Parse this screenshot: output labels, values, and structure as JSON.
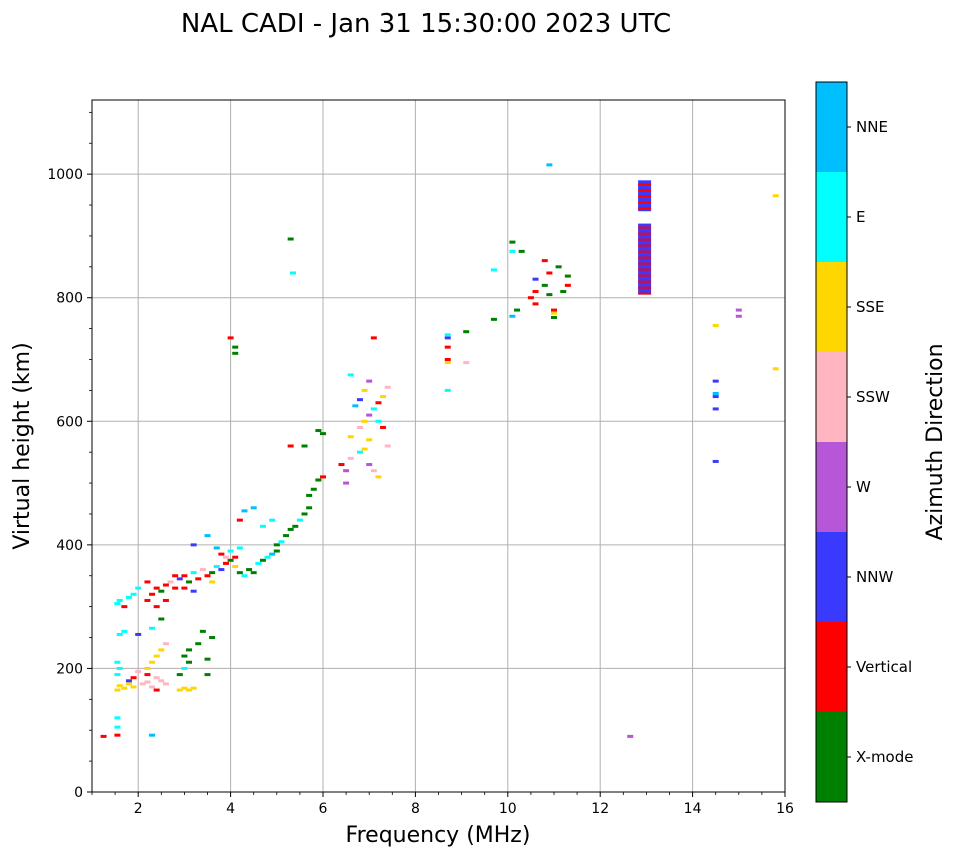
{
  "chart_data": {
    "type": "scatter",
    "title": "NAL CADI - Jan 31 15:30:00 2023 UTC",
    "xlabel": "Frequency (MHz)",
    "ylabel": "Virtual height (km)",
    "xlim": [
      1,
      16
    ],
    "ylim": [
      0,
      1120
    ],
    "xticks": [
      2,
      4,
      6,
      8,
      10,
      12,
      14,
      16
    ],
    "yticks": [
      0,
      200,
      400,
      600,
      800,
      1000
    ],
    "grid": true,
    "colorbar": {
      "label": "Azimuth Direction",
      "categories": [
        "X-mode",
        "Vertical",
        "NNW",
        "W",
        "SSW",
        "SSE",
        "E",
        "NNE"
      ],
      "colors": [
        "#008000",
        "#ff0000",
        "#3a3aff",
        "#b557d6",
        "#ffb6c1",
        "#ffd700",
        "#00ffff",
        "#00bfff"
      ]
    },
    "points": [
      [
        1.25,
        90,
        "Vertical"
      ],
      [
        1.55,
        92,
        "Vertical"
      ],
      [
        1.55,
        105,
        "E"
      ],
      [
        1.55,
        120,
        "E"
      ],
      [
        2.3,
        92,
        "NNE"
      ],
      [
        1.55,
        165,
        "SSE"
      ],
      [
        1.6,
        172,
        "SSE"
      ],
      [
        1.7,
        168,
        "SSE"
      ],
      [
        1.8,
        175,
        "SSE"
      ],
      [
        1.9,
        170,
        "SSE"
      ],
      [
        1.55,
        190,
        "E"
      ],
      [
        1.6,
        200,
        "E"
      ],
      [
        1.55,
        210,
        "E"
      ],
      [
        1.8,
        180,
        "NNW"
      ],
      [
        1.9,
        185,
        "Vertical"
      ],
      [
        2.0,
        195,
        "SSW"
      ],
      [
        2.1,
        175,
        "SSW"
      ],
      [
        2.2,
        178,
        "SSW"
      ],
      [
        2.3,
        170,
        "SSW"
      ],
      [
        2.4,
        185,
        "SSW"
      ],
      [
        2.5,
        180,
        "SSW"
      ],
      [
        2.6,
        175,
        "SSW"
      ],
      [
        2.4,
        165,
        "Vertical"
      ],
      [
        2.2,
        190,
        "Vertical"
      ],
      [
        2.2,
        200,
        "SSE"
      ],
      [
        2.3,
        210,
        "SSE"
      ],
      [
        2.4,
        220,
        "SSE"
      ],
      [
        2.5,
        230,
        "SSE"
      ],
      [
        2.6,
        240,
        "SSW"
      ],
      [
        2.9,
        165,
        "SSE"
      ],
      [
        3.0,
        168,
        "SSE"
      ],
      [
        3.1,
        165,
        "SSE"
      ],
      [
        3.2,
        168,
        "SSE"
      ],
      [
        2.9,
        190,
        "X-mode"
      ],
      [
        3.0,
        200,
        "E"
      ],
      [
        3.1,
        210,
        "X-mode"
      ],
      [
        3.0,
        220,
        "X-mode"
      ],
      [
        3.1,
        230,
        "X-mode"
      ],
      [
        3.3,
        240,
        "X-mode"
      ],
      [
        3.5,
        190,
        "X-mode"
      ],
      [
        3.5,
        215,
        "X-mode"
      ],
      [
        3.4,
        260,
        "X-mode"
      ],
      [
        3.6,
        250,
        "X-mode"
      ],
      [
        1.6,
        255,
        "E"
      ],
      [
        1.7,
        260,
        "E"
      ],
      [
        2.0,
        255,
        "NNW"
      ],
      [
        2.3,
        265,
        "E"
      ],
      [
        2.5,
        280,
        "X-mode"
      ],
      [
        1.55,
        305,
        "E"
      ],
      [
        1.6,
        310,
        "E"
      ],
      [
        1.7,
        300,
        "Vertical"
      ],
      [
        1.8,
        315,
        "E"
      ],
      [
        1.9,
        320,
        "E"
      ],
      [
        2.0,
        330,
        "E"
      ],
      [
        2.2,
        310,
        "Vertical"
      ],
      [
        2.3,
        320,
        "Vertical"
      ],
      [
        2.4,
        330,
        "Vertical"
      ],
      [
        2.5,
        325,
        "X-mode"
      ],
      [
        2.6,
        335,
        "Vertical"
      ],
      [
        2.7,
        340,
        "SSW"
      ],
      [
        2.8,
        330,
        "Vertical"
      ],
      [
        2.9,
        345,
        "NNW"
      ],
      [
        3.0,
        350,
        "Vertical"
      ],
      [
        3.1,
        340,
        "X-mode"
      ],
      [
        3.2,
        355,
        "E"
      ],
      [
        3.3,
        345,
        "Vertical"
      ],
      [
        3.4,
        360,
        "SSW"
      ],
      [
        3.5,
        350,
        "Vertical"
      ],
      [
        3.6,
        355,
        "X-mode"
      ],
      [
        3.7,
        365,
        "E"
      ],
      [
        3.8,
        360,
        "NNW"
      ],
      [
        3.9,
        370,
        "Vertical"
      ],
      [
        4.0,
        375,
        "X-mode"
      ],
      [
        4.1,
        365,
        "SSE"
      ],
      [
        4.2,
        355,
        "X-mode"
      ],
      [
        4.3,
        350,
        "E"
      ],
      [
        4.4,
        360,
        "X-mode"
      ],
      [
        4.5,
        355,
        "X-mode"
      ],
      [
        4.6,
        370,
        "E"
      ],
      [
        4.7,
        375,
        "X-mode"
      ],
      [
        4.8,
        380,
        "E"
      ],
      [
        4.9,
        385,
        "NNE"
      ],
      [
        5.0,
        390,
        "X-mode"
      ],
      [
        2.4,
        300,
        "Vertical"
      ],
      [
        2.6,
        310,
        "Vertical"
      ],
      [
        2.2,
        340,
        "Vertical"
      ],
      [
        2.8,
        350,
        "Vertical"
      ],
      [
        3.0,
        330,
        "Vertical"
      ],
      [
        3.2,
        325,
        "NNW"
      ],
      [
        3.6,
        340,
        "SSE"
      ],
      [
        3.8,
        385,
        "Vertical"
      ],
      [
        4.0,
        390,
        "E"
      ],
      [
        4.2,
        395,
        "E"
      ],
      [
        3.7,
        395,
        "NNE"
      ],
      [
        3.2,
        400,
        "NNW"
      ],
      [
        3.5,
        415,
        "NNE"
      ],
      [
        3.9,
        380,
        "SSW"
      ],
      [
        4.1,
        380,
        "Vertical"
      ],
      [
        4.0,
        735,
        "Vertical"
      ],
      [
        4.1,
        720,
        "X-mode"
      ],
      [
        4.1,
        710,
        "X-mode"
      ],
      [
        5.3,
        895,
        "X-mode"
      ],
      [
        5.35,
        840,
        "E"
      ],
      [
        4.5,
        460,
        "NNE"
      ],
      [
        4.3,
        455,
        "NNE"
      ],
      [
        4.2,
        440,
        "Vertical"
      ],
      [
        4.7,
        430,
        "E"
      ],
      [
        4.9,
        440,
        "E"
      ],
      [
        5.0,
        400,
        "X-mode"
      ],
      [
        5.1,
        405,
        "E"
      ],
      [
        5.2,
        415,
        "X-mode"
      ],
      [
        5.3,
        425,
        "X-mode"
      ],
      [
        5.4,
        430,
        "X-mode"
      ],
      [
        5.5,
        440,
        "E"
      ],
      [
        5.6,
        450,
        "X-mode"
      ],
      [
        5.7,
        460,
        "X-mode"
      ],
      [
        5.7,
        480,
        "X-mode"
      ],
      [
        5.8,
        490,
        "X-mode"
      ],
      [
        5.9,
        505,
        "X-mode"
      ],
      [
        6.0,
        510,
        "Vertical"
      ],
      [
        5.3,
        560,
        "Vertical"
      ],
      [
        5.6,
        560,
        "X-mode"
      ],
      [
        5.9,
        585,
        "X-mode"
      ],
      [
        6.0,
        580,
        "X-mode"
      ],
      [
        6.5,
        500,
        "W"
      ],
      [
        6.5,
        520,
        "W"
      ],
      [
        6.4,
        530,
        "Vertical"
      ],
      [
        6.6,
        540,
        "SSW"
      ],
      [
        6.8,
        550,
        "E"
      ],
      [
        6.9,
        555,
        "SSE"
      ],
      [
        7.0,
        530,
        "W"
      ],
      [
        7.1,
        520,
        "SSW"
      ],
      [
        7.2,
        510,
        "SSE"
      ],
      [
        6.6,
        575,
        "SSE"
      ],
      [
        6.8,
        590,
        "SSW"
      ],
      [
        6.9,
        600,
        "SSE"
      ],
      [
        7.0,
        610,
        "W"
      ],
      [
        7.1,
        620,
        "E"
      ],
      [
        7.2,
        630,
        "Vertical"
      ],
      [
        7.3,
        640,
        "SSE"
      ],
      [
        7.4,
        655,
        "SSW"
      ],
      [
        6.7,
        625,
        "NNE"
      ],
      [
        6.8,
        635,
        "NNW"
      ],
      [
        6.9,
        650,
        "SSE"
      ],
      [
        7.0,
        665,
        "W"
      ],
      [
        6.6,
        675,
        "E"
      ],
      [
        7.1,
        735,
        "Vertical"
      ],
      [
        7.3,
        590,
        "Vertical"
      ],
      [
        7.4,
        560,
        "SSW"
      ],
      [
        7.2,
        600,
        "E"
      ],
      [
        7.0,
        570,
        "SSE"
      ],
      [
        8.7,
        650,
        "E"
      ],
      [
        8.7,
        695,
        "SSE"
      ],
      [
        8.7,
        700,
        "Vertical"
      ],
      [
        8.7,
        720,
        "Vertical"
      ],
      [
        8.7,
        735,
        "NNW"
      ],
      [
        8.7,
        740,
        "E"
      ],
      [
        9.1,
        695,
        "SSW"
      ],
      [
        9.1,
        745,
        "X-mode"
      ],
      [
        9.7,
        765,
        "X-mode"
      ],
      [
        9.7,
        845,
        "E"
      ],
      [
        10.1,
        770,
        "NNE"
      ],
      [
        10.2,
        780,
        "X-mode"
      ],
      [
        10.1,
        875,
        "E"
      ],
      [
        10.1,
        890,
        "X-mode"
      ],
      [
        10.3,
        875,
        "X-mode"
      ],
      [
        10.5,
        800,
        "Vertical"
      ],
      [
        10.6,
        790,
        "Vertical"
      ],
      [
        10.6,
        810,
        "Vertical"
      ],
      [
        10.6,
        830,
        "NNW"
      ],
      [
        10.8,
        820,
        "X-mode"
      ],
      [
        10.9,
        805,
        "X-mode"
      ],
      [
        10.9,
        840,
        "Vertical"
      ],
      [
        11.0,
        775,
        "SSE"
      ],
      [
        11.0,
        768,
        "X-mode"
      ],
      [
        11.2,
        810,
        "X-mode"
      ],
      [
        11.1,
        850,
        "X-mode"
      ],
      [
        10.8,
        860,
        "Vertical"
      ],
      [
        10.9,
        1015,
        "NNE"
      ],
      [
        11.3,
        835,
        "X-mode"
      ],
      [
        11.3,
        820,
        "Vertical"
      ],
      [
        11.0,
        780,
        "Vertical"
      ],
      [
        12.65,
        90,
        "W"
      ],
      [
        14.5,
        755,
        "SSE"
      ],
      [
        14.5,
        665,
        "NNW"
      ],
      [
        14.5,
        645,
        "NNE"
      ],
      [
        14.5,
        640,
        "NNW"
      ],
      [
        14.5,
        620,
        "NNW"
      ],
      [
        14.5,
        535,
        "NNW"
      ],
      [
        15.0,
        780,
        "W"
      ],
      [
        15.0,
        770,
        "W"
      ],
      [
        15.8,
        965,
        "SSE"
      ],
      [
        15.8,
        685,
        "SSE"
      ]
    ],
    "columns": [
      {
        "x": 12.95,
        "y_from": 805,
        "y_to": 990,
        "gap_from": 940,
        "gap_to": 920,
        "base": "NNW",
        "stripe": "Vertical"
      }
    ]
  }
}
